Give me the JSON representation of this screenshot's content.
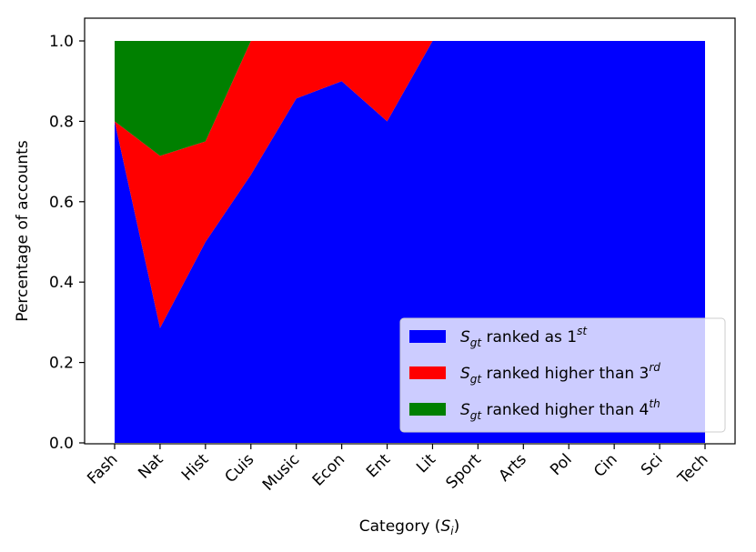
{
  "chart_data": {
    "type": "area",
    "stacked": true,
    "categories": [
      "Fash",
      "Nat",
      "Hist",
      "Cuis",
      "Music",
      "Econ",
      "Ent",
      "Lit",
      "Sport",
      "Arts",
      "Pol",
      "Cin",
      "Sci",
      "Tech"
    ],
    "series": [
      {
        "name_base": "S",
        "name_sub": "gt",
        "name_text": " ranked as 1",
        "name_sup": "st",
        "color": "#0000ff",
        "values": [
          0.8,
          0.286,
          0.5,
          0.667,
          0.857,
          0.9,
          0.8,
          1.0,
          1.0,
          1.0,
          1.0,
          1.0,
          1.0,
          1.0
        ]
      },
      {
        "name_base": "S",
        "name_sub": "gt",
        "name_text": " ranked higher than 3",
        "name_sup": "rd",
        "color": "#ff0000",
        "values": [
          0.8,
          0.714,
          0.75,
          1.0,
          1.0,
          1.0,
          1.0,
          1.0,
          1.0,
          1.0,
          1.0,
          1.0,
          1.0,
          1.0
        ]
      },
      {
        "name_base": "S",
        "name_sub": "gt",
        "name_text": " ranked higher than 4",
        "name_sup": "th",
        "color": "#008000",
        "values": [
          1.0,
          1.0,
          1.0,
          1.0,
          1.0,
          1.0,
          1.0,
          1.0,
          1.0,
          1.0,
          1.0,
          1.0,
          1.0,
          1.0
        ]
      }
    ],
    "ylabel": "Percentage of accounts",
    "xlabel_text": "Category (",
    "xlabel_var": "S",
    "xlabel_sub": "i",
    "xlabel_close": ")",
    "ylim": [
      0,
      1.0
    ],
    "yticks": [
      "0.0",
      "0.2",
      "0.4",
      "0.6",
      "0.8",
      "1.0"
    ],
    "legend_position": "lower-right",
    "grid": false
  }
}
